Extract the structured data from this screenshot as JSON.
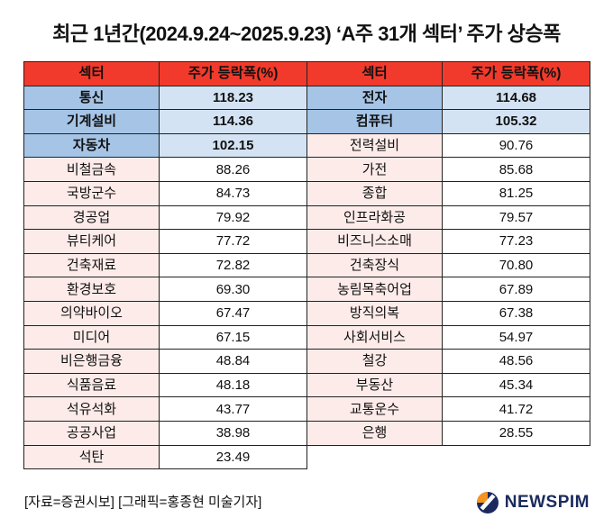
{
  "title": "최근 1년간(2024.9.24~2025.9.23) ‘A주 31개 섹터’ 주가 상승폭",
  "footer": "[자료=증권시보] [그래픽=홍종현 미술기자]",
  "logo": {
    "text": "NEWSPIM"
  },
  "colors": {
    "header_bg": "#f13a2b",
    "sector_cell_bg": "#fcebe9",
    "value_cell_bg": "#ffffff",
    "highlight_sector_bg": "#a6c5e6",
    "highlight_value_bg": "#d4e3f3",
    "border": "#222222",
    "logo_navy": "#1b2a5e",
    "logo_orange": "#f7941d"
  },
  "chart_data": {
    "type": "table",
    "title": "최근 1년간(2024.9.24~2025.9.23) ‘A주 31개 섹터’ 주가 상승폭",
    "column_headers": [
      "섹터",
      "주가 등락폭(%)"
    ],
    "highlight_meaning": "top rows highlighted blue",
    "tables": [
      {
        "rows": [
          {
            "sector": "통신",
            "value": "118.23",
            "highlight": true
          },
          {
            "sector": "기계설비",
            "value": "114.36",
            "highlight": true
          },
          {
            "sector": "자동차",
            "value": "102.15",
            "highlight": true
          },
          {
            "sector": "비철금속",
            "value": "88.26",
            "highlight": false
          },
          {
            "sector": "국방군수",
            "value": "84.73",
            "highlight": false
          },
          {
            "sector": "경공업",
            "value": "79.92",
            "highlight": false
          },
          {
            "sector": "뷰티케어",
            "value": "77.72",
            "highlight": false
          },
          {
            "sector": "건축재료",
            "value": "72.82",
            "highlight": false
          },
          {
            "sector": "환경보호",
            "value": "69.30",
            "highlight": false
          },
          {
            "sector": "의약바이오",
            "value": "67.47",
            "highlight": false
          },
          {
            "sector": "미디어",
            "value": "67.15",
            "highlight": false
          },
          {
            "sector": "비은행금융",
            "value": "48.84",
            "highlight": false
          },
          {
            "sector": "식품음료",
            "value": "48.18",
            "highlight": false
          },
          {
            "sector": "석유석화",
            "value": "43.77",
            "highlight": false
          },
          {
            "sector": "공공사업",
            "value": "38.98",
            "highlight": false
          },
          {
            "sector": "석탄",
            "value": "23.49",
            "highlight": false
          }
        ]
      },
      {
        "rows": [
          {
            "sector": "전자",
            "value": "114.68",
            "highlight": true
          },
          {
            "sector": "컴퓨터",
            "value": "105.32",
            "highlight": true
          },
          {
            "sector": "전력설비",
            "value": "90.76",
            "highlight": false
          },
          {
            "sector": "가전",
            "value": "85.68",
            "highlight": false
          },
          {
            "sector": "종합",
            "value": "81.25",
            "highlight": false
          },
          {
            "sector": "인프라화공",
            "value": "79.57",
            "highlight": false
          },
          {
            "sector": "비즈니스소매",
            "value": "77.23",
            "highlight": false
          },
          {
            "sector": "건축장식",
            "value": "70.80",
            "highlight": false
          },
          {
            "sector": "농림목축어업",
            "value": "67.89",
            "highlight": false
          },
          {
            "sector": "방직의복",
            "value": "67.38",
            "highlight": false
          },
          {
            "sector": "사회서비스",
            "value": "54.97",
            "highlight": false
          },
          {
            "sector": "철강",
            "value": "48.56",
            "highlight": false
          },
          {
            "sector": "부동산",
            "value": "45.34",
            "highlight": false
          },
          {
            "sector": "교통운수",
            "value": "41.72",
            "highlight": false
          },
          {
            "sector": "은행",
            "value": "28.55",
            "highlight": false
          }
        ]
      }
    ]
  }
}
